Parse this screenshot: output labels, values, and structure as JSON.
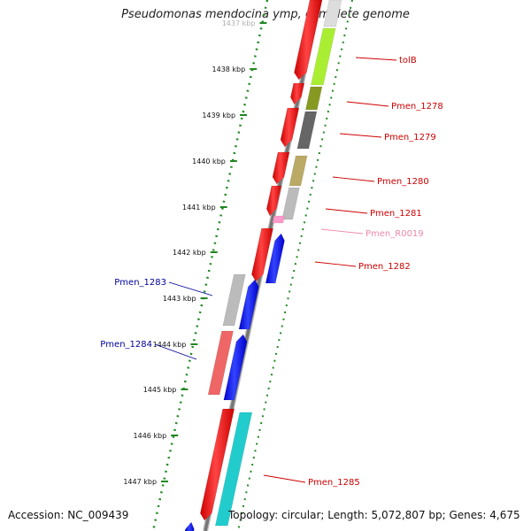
{
  "title": "Pseudomonas mendocina ymp, complete genome",
  "footer": {
    "accession": "Accession: NC_009439",
    "topology": "Topology: circular; Length: 5,072,807 bp; Genes: 4,675"
  },
  "scale": {
    "ticks": [
      "1437 kbp",
      "1438 kbp",
      "1439 kbp",
      "1440 kbp",
      "1441 kbp",
      "1442 kbp",
      "1443 kbp",
      "1444 kbp",
      "1445 kbp",
      "1446 kbp",
      "1447 kbp"
    ]
  },
  "colors": {
    "forward": "#ff0000",
    "reverse": "#0000ff",
    "backbone": "#777777",
    "scale": "#228822",
    "forward_label": "#cc0000",
    "reverse_label": "#000099",
    "rna_label": "#ee88aa"
  },
  "genes": [
    {
      "label": "tolB",
      "strand": "forward"
    },
    {
      "label": "Pmen_1278",
      "strand": "forward"
    },
    {
      "label": "Pmen_1279",
      "strand": "forward"
    },
    {
      "label": "Pmen_1280",
      "strand": "forward"
    },
    {
      "label": "Pmen_1281",
      "strand": "forward"
    },
    {
      "label": "Pmen_R0019",
      "strand": "rna"
    },
    {
      "label": "Pmen_1282",
      "strand": "forward"
    },
    {
      "label": "Pmen_1283",
      "strand": "reverse"
    },
    {
      "label": "Pmen_1284",
      "strand": "reverse"
    },
    {
      "label": "Pmen_1285",
      "strand": "forward"
    }
  ]
}
